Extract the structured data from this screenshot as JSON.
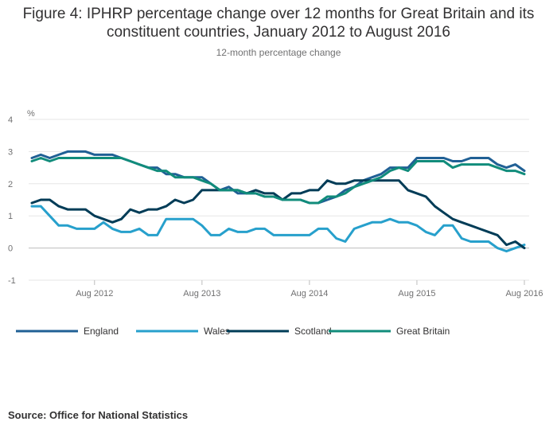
{
  "title": "Figure 4: IPHRP percentage change over 12 months for Great Britain and its constituent countries, January 2012 to August 2016",
  "subtitle": "12-month percentage change",
  "source": "Source: Office for National Statistics",
  "chart_data": {
    "type": "line",
    "title": "Figure 4: IPHRP percentage change over 12 months for Great Britain and its constituent countries, January 2012 to August 2016",
    "subtitle": "12-month percentage change",
    "ylabel": "%",
    "ylim": [
      -1,
      4
    ],
    "yticks": [
      -1,
      0,
      1,
      2,
      3,
      4
    ],
    "xticks": [
      {
        "label": "Aug 2012",
        "index": 7
      },
      {
        "label": "Aug 2013",
        "index": 19
      },
      {
        "label": "Aug 2014",
        "index": 31
      },
      {
        "label": "Aug 2015",
        "index": 43
      },
      {
        "label": "Aug 2016",
        "index": 55
      }
    ],
    "x_start": "Jan 2012",
    "x_end": "Aug 2016",
    "grid": true,
    "legend_position": "bottom",
    "series": [
      {
        "name": "England",
        "color": "#206095",
        "values": [
          2.8,
          2.9,
          2.8,
          2.9,
          3.0,
          3.0,
          3.0,
          2.9,
          2.9,
          2.9,
          2.8,
          2.7,
          2.6,
          2.5,
          2.5,
          2.3,
          2.3,
          2.2,
          2.2,
          2.2,
          2.0,
          1.8,
          1.9,
          1.7,
          1.7,
          1.7,
          1.6,
          1.6,
          1.5,
          1.5,
          1.5,
          1.4,
          1.4,
          1.5,
          1.6,
          1.8,
          1.9,
          2.1,
          2.2,
          2.3,
          2.5,
          2.5,
          2.5,
          2.8,
          2.8,
          2.8,
          2.8,
          2.7,
          2.7,
          2.8,
          2.8,
          2.8,
          2.6,
          2.5,
          2.6,
          2.4
        ]
      },
      {
        "name": "Wales",
        "color": "#27a0cc",
        "values": [
          1.3,
          1.3,
          1.0,
          0.7,
          0.7,
          0.6,
          0.6,
          0.6,
          0.8,
          0.6,
          0.5,
          0.5,
          0.6,
          0.4,
          0.4,
          0.9,
          0.9,
          0.9,
          0.9,
          0.7,
          0.4,
          0.4,
          0.6,
          0.5,
          0.5,
          0.6,
          0.6,
          0.4,
          0.4,
          0.4,
          0.4,
          0.4,
          0.6,
          0.6,
          0.3,
          0.2,
          0.6,
          0.7,
          0.8,
          0.8,
          0.9,
          0.8,
          0.8,
          0.7,
          0.5,
          0.4,
          0.7,
          0.7,
          0.3,
          0.2,
          0.2,
          0.2,
          0.0,
          -0.1,
          0.0,
          0.1
        ]
      },
      {
        "name": "Scotland",
        "color": "#003c57",
        "values": [
          1.4,
          1.5,
          1.5,
          1.3,
          1.2,
          1.2,
          1.2,
          1.0,
          0.9,
          0.8,
          0.9,
          1.2,
          1.1,
          1.2,
          1.2,
          1.3,
          1.5,
          1.4,
          1.5,
          1.8,
          1.8,
          1.8,
          1.8,
          1.8,
          1.7,
          1.8,
          1.7,
          1.7,
          1.5,
          1.7,
          1.7,
          1.8,
          1.8,
          2.1,
          2.0,
          2.0,
          2.1,
          2.1,
          2.1,
          2.1,
          2.1,
          2.1,
          1.8,
          1.7,
          1.6,
          1.3,
          1.1,
          0.9,
          0.8,
          0.7,
          0.6,
          0.5,
          0.4,
          0.1,
          0.2,
          0.0
        ]
      },
      {
        "name": "Great Britain",
        "color": "#118c7b",
        "values": [
          2.7,
          2.8,
          2.7,
          2.8,
          2.8,
          2.8,
          2.8,
          2.8,
          2.8,
          2.8,
          2.8,
          2.7,
          2.6,
          2.5,
          2.4,
          2.4,
          2.2,
          2.2,
          2.2,
          2.1,
          2.0,
          1.8,
          1.8,
          1.8,
          1.7,
          1.7,
          1.6,
          1.6,
          1.5,
          1.5,
          1.5,
          1.4,
          1.4,
          1.6,
          1.6,
          1.7,
          1.9,
          2.0,
          2.1,
          2.2,
          2.4,
          2.5,
          2.4,
          2.7,
          2.7,
          2.7,
          2.7,
          2.5,
          2.6,
          2.6,
          2.6,
          2.6,
          2.5,
          2.4,
          2.4,
          2.3
        ]
      }
    ]
  }
}
